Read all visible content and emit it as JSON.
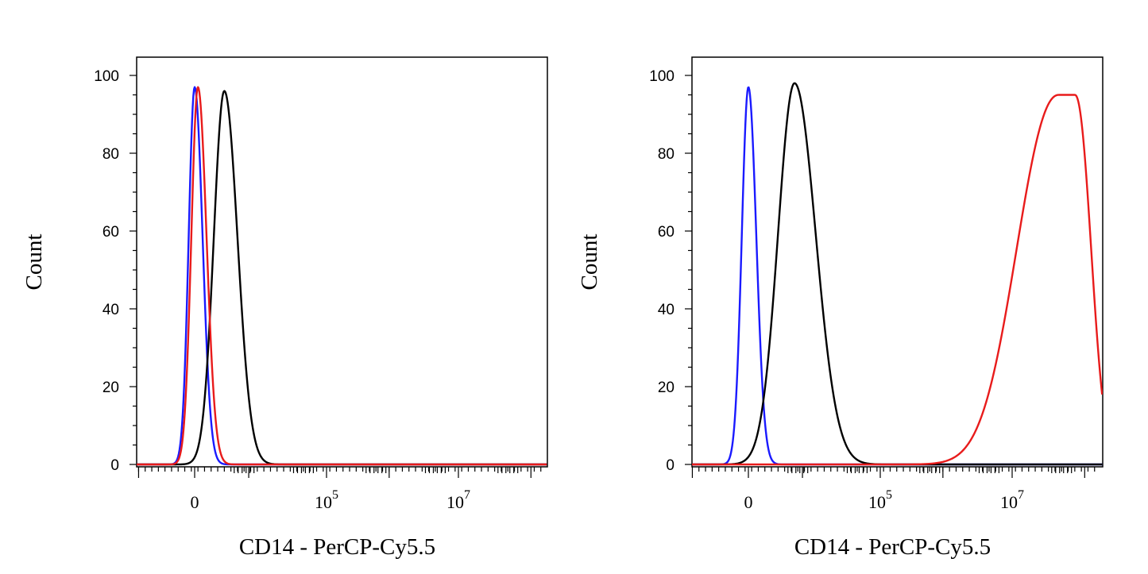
{
  "chart_data": [
    {
      "type": "line",
      "title": "",
      "xlabel": "CD14 - PerCP-Cy5.5",
      "ylabel": "Count",
      "x_scale": "biexponential",
      "ylim": [
        0,
        100
      ],
      "y_ticks": [
        "0",
        "20",
        "40",
        "60",
        "80",
        "100"
      ],
      "x_tick_labels": [
        {
          "base": "0",
          "exp": ""
        },
        {
          "base": "10",
          "exp": "5"
        },
        {
          "base": "10",
          "exp": "7"
        }
      ],
      "grid": false,
      "legend": "none",
      "series": [
        {
          "color": "#1a1aff",
          "peak_position": 0.0,
          "peak_height": 97,
          "left_spread": 0.09,
          "right_spread": 0.12,
          "shape": "gaussian"
        },
        {
          "color": "#000000",
          "peak_position": 0.45,
          "peak_height": 96,
          "left_spread": 0.16,
          "right_spread": 0.2,
          "shape": "gaussian"
        },
        {
          "color": "#e81b1b",
          "peak_position": 0.05,
          "peak_height": 97,
          "left_spread": 0.1,
          "right_spread": 0.13,
          "shape": "gaussian"
        }
      ]
    },
    {
      "type": "line",
      "title": "",
      "xlabel": "CD14 - PerCP-Cy5.5",
      "ylabel": "Count",
      "x_scale": "biexponential",
      "ylim": [
        0,
        100
      ],
      "y_ticks": [
        "0",
        "20",
        "40",
        "60",
        "80",
        "100"
      ],
      "x_tick_labels": [
        {
          "base": "0",
          "exp": ""
        },
        {
          "base": "10",
          "exp": "5"
        },
        {
          "base": "10",
          "exp": "7"
        }
      ],
      "grid": false,
      "legend": "none",
      "series": [
        {
          "color": "#1a1aff",
          "peak_position": 0.0,
          "peak_height": 97,
          "left_spread": 0.1,
          "right_spread": 0.12,
          "shape": "gaussian"
        },
        {
          "color": "#000000",
          "peak_position": 0.7,
          "peak_height": 98,
          "left_spread": 0.25,
          "right_spread": 0.32,
          "shape": "gaussian"
        },
        {
          "color": "#e81b1b",
          "peak_position": 4.83,
          "peak_height": 95,
          "left_spread": 0.62,
          "right_spread": 0.24,
          "shape": "flat-top"
        }
      ]
    }
  ]
}
